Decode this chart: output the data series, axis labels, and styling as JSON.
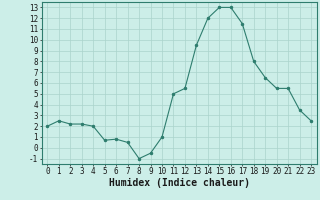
{
  "x": [
    0,
    1,
    2,
    3,
    4,
    5,
    6,
    7,
    8,
    9,
    10,
    11,
    12,
    13,
    14,
    15,
    16,
    17,
    18,
    19,
    20,
    21,
    22,
    23
  ],
  "y": [
    2,
    2.5,
    2.2,
    2.2,
    2,
    0.7,
    0.8,
    0.5,
    -1,
    -0.5,
    1,
    5,
    5.5,
    9.5,
    12,
    13,
    13,
    11.5,
    8,
    6.5,
    5.5,
    5.5,
    3.5,
    2.5
  ],
  "line_color": "#2e7d6e",
  "marker_color": "#2e7d6e",
  "bg_color": "#cceee8",
  "grid_color": "#aad4cc",
  "xlabel": "Humidex (Indice chaleur)",
  "xlim": [
    -0.5,
    23.5
  ],
  "ylim": [
    -1.5,
    13.5
  ],
  "yticks": [
    -1,
    0,
    1,
    2,
    3,
    4,
    5,
    6,
    7,
    8,
    9,
    10,
    11,
    12,
    13
  ],
  "xticks": [
    0,
    1,
    2,
    3,
    4,
    5,
    6,
    7,
    8,
    9,
    10,
    11,
    12,
    13,
    14,
    15,
    16,
    17,
    18,
    19,
    20,
    21,
    22,
    23
  ],
  "tick_fontsize": 5.5,
  "xlabel_fontsize": 7
}
